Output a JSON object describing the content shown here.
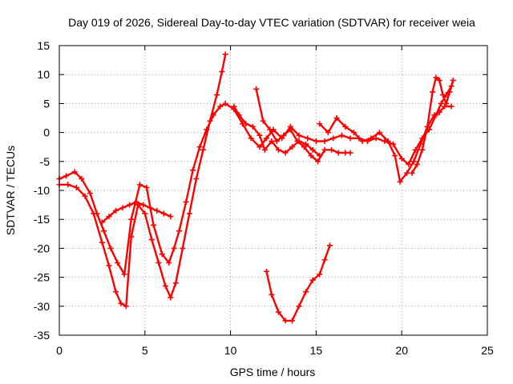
{
  "chart_data": {
    "type": "scatter",
    "title": "Day 019 of 2026, Sidereal Day-to-day VTEC variation (SDTVAR) for receiver weia",
    "xlabel": "GPS time / hours",
    "ylabel": "SDTVAR / TECUs",
    "xlim": [
      0,
      25
    ],
    "ylim": [
      -35,
      15
    ],
    "xticks": [
      0,
      5,
      10,
      15,
      20,
      25
    ],
    "yticks": [
      -35,
      -30,
      -25,
      -20,
      -15,
      -10,
      -5,
      0,
      5,
      10,
      15
    ],
    "grid": true,
    "marker": "+",
    "color": "#ff0000",
    "series": [
      {
        "name": "track-a",
        "x": [
          0.0,
          0.4,
          0.9,
          1.3,
          1.8,
          2.2,
          2.6,
          3.0,
          3.4,
          3.8,
          4.2,
          4.7,
          5.1,
          5.5,
          6.0,
          6.4,
          6.7,
          7.0,
          7.4,
          7.8,
          8.2,
          8.6,
          9.0,
          9.4,
          9.7,
          10.2,
          10.7,
          11.2,
          11.7,
          12.1,
          12.5,
          13.0,
          13.5,
          14.0,
          14.5,
          15.0,
          15.5,
          16.0,
          16.5,
          17.0,
          17.5,
          18.0,
          18.5,
          19.0,
          19.5,
          20.0,
          20.4,
          20.8,
          21.2,
          21.6,
          22.0,
          22.3,
          22.6,
          22.9
        ],
        "y": [
          -8.0,
          -7.5,
          -6.8,
          -8.0,
          -10.5,
          -14.0,
          -17.0,
          -20.0,
          -22.5,
          -24.5,
          -15.0,
          -9.0,
          -9.5,
          -16.0,
          -21.0,
          -22.5,
          -20.0,
          -17.0,
          -12.0,
          -6.5,
          -2.5,
          0.5,
          3.0,
          4.5,
          5.0,
          4.0,
          1.5,
          -1.0,
          -2.5,
          -1.0,
          0.5,
          -1.0,
          1.0,
          -0.5,
          -1.0,
          -1.5,
          -1.5,
          -1.0,
          -0.5,
          -1.0,
          -1.0,
          -1.5,
          -1.0,
          -1.5,
          -2.0,
          -4.5,
          -5.5,
          -3.0,
          -1.0,
          0.5,
          3.0,
          5.0,
          6.5,
          8.0
        ]
      },
      {
        "name": "track-b",
        "x": [
          0.0,
          0.5,
          1.0,
          1.5,
          2.0,
          2.5,
          2.9,
          3.3,
          3.6,
          3.9,
          4.2,
          4.6,
          5.0,
          5.4,
          5.8,
          6.2,
          6.5,
          6.8,
          7.2,
          7.6,
          8.0,
          8.4,
          8.8,
          9.2,
          9.5,
          9.7
        ],
        "y": [
          -9.0,
          -9.0,
          -9.5,
          -11.0,
          -14.0,
          -19.0,
          -23.0,
          -27.5,
          -29.5,
          -30.0,
          -18.0,
          -12.5,
          -14.0,
          -18.5,
          -22.5,
          -26.5,
          -28.5,
          -26.0,
          -20.0,
          -14.0,
          -8.0,
          -3.0,
          2.0,
          6.5,
          10.5,
          13.5
        ]
      },
      {
        "name": "track-c",
        "x": [
          2.5,
          2.9,
          3.3,
          3.7,
          4.1,
          4.5,
          4.9,
          5.3,
          5.7,
          6.1,
          6.5
        ],
        "y": [
          -15.5,
          -14.5,
          -13.5,
          -13.0,
          -12.5,
          -12.0,
          -12.5,
          -13.0,
          -13.5,
          -14.0,
          -14.5
        ]
      },
      {
        "name": "track-d",
        "x": [
          12.1,
          12.4,
          12.8,
          13.2,
          13.6,
          14.0,
          14.4,
          14.8,
          15.2,
          15.5,
          15.8
        ],
        "y": [
          -24.0,
          -28.0,
          -31.0,
          -32.5,
          -32.5,
          -30.0,
          -27.5,
          -25.5,
          -24.5,
          -22.0,
          -19.5
        ]
      },
      {
        "name": "track-e",
        "x": [
          11.5,
          11.9,
          12.3,
          12.7,
          13.1,
          13.5,
          13.9,
          14.3,
          14.7,
          15.1,
          15.5,
          15.9,
          16.3,
          16.7,
          17.0
        ],
        "y": [
          7.5,
          2.0,
          0.5,
          -1.5,
          -0.5,
          0.5,
          -1.5,
          -2.5,
          -4.0,
          -5.0,
          -3.0,
          -3.0,
          -3.5,
          -3.5,
          -3.5
        ]
      },
      {
        "name": "track-f",
        "x": [
          15.2,
          15.7,
          16.2,
          16.7,
          17.2,
          17.7,
          18.2,
          18.7,
          19.2,
          19.6,
          19.9,
          20.3,
          20.7,
          21.1,
          21.5,
          21.9,
          22.2,
          22.5,
          22.9
        ],
        "y": [
          1.5,
          0.0,
          2.5,
          1.0,
          0.0,
          -1.5,
          -1.0,
          0.0,
          -1.5,
          -4.0,
          -8.5,
          -7.0,
          -5.0,
          -2.0,
          1.0,
          3.0,
          3.5,
          4.5,
          4.5
        ]
      },
      {
        "name": "track-g",
        "x": [
          10.2,
          10.5,
          10.9,
          11.3,
          11.7,
          12.0,
          12.4,
          12.8,
          13.2,
          13.6,
          14.0,
          14.4,
          14.8,
          15.2
        ],
        "y": [
          4.5,
          3.0,
          1.5,
          1.0,
          -0.5,
          -3.0,
          -1.5,
          -3.0,
          -3.5,
          -2.5,
          -1.5,
          -2.0,
          -3.0,
          -4.0
        ]
      },
      {
        "name": "track-h",
        "x": [
          20.6,
          20.9,
          21.2,
          21.5,
          21.8,
          22.0,
          22.2,
          22.4,
          22.6,
          22.8,
          23.0
        ],
        "y": [
          -7.0,
          -5.5,
          -3.0,
          1.0,
          7.0,
          9.5,
          9.0,
          6.5,
          5.0,
          7.0,
          9.0
        ]
      }
    ]
  }
}
